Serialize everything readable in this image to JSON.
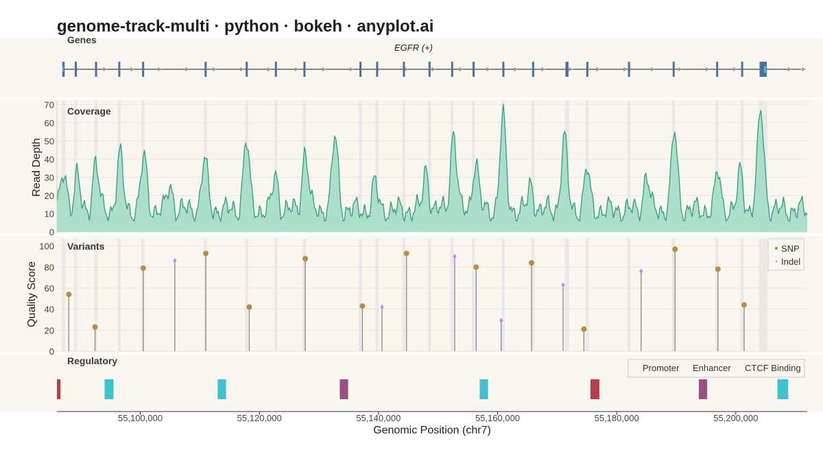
{
  "title": "genome-track-multi · python · bokeh · anyplot.ai",
  "colors": {
    "background": "#f9f6f0",
    "gene_exon": "#4a6fa5",
    "gene_line": "#444444",
    "gene_arrow": "#999999",
    "coverage_fill": "#a8dcc9",
    "coverage_line": "#2e9e7c",
    "snp": "#c08a3e",
    "indel": "#c77dff",
    "stem": "#888888",
    "exon_band": "#e6e6e6",
    "promoter": "#b5404a",
    "enhancer": "#3fc1cf",
    "ctcf": "#9b4f82"
  },
  "chart_data": {
    "type": "genome-track",
    "x_axis": {
      "label": "Genomic Position (chr7)",
      "range": [
        55086000,
        55212000
      ],
      "ticks": [
        55100000,
        55120000,
        55140000,
        55160000,
        55180000,
        55200000
      ],
      "tick_labels": [
        "55,100,000",
        "55,120,000",
        "55,140,000",
        "55,160,000",
        "55,180,000",
        "55,200,000"
      ]
    },
    "genes": {
      "title": "Genes",
      "gene_name": "EGFR (+)",
      "start": 55087000,
      "end": 55211000,
      "exons": [
        [
          55086900,
          55087300
        ],
        [
          55089000,
          55089300
        ],
        [
          55092400,
          55092700
        ],
        [
          55096300,
          55096600
        ],
        [
          55100300,
          55100600
        ],
        [
          55110800,
          55111100
        ],
        [
          55117700,
          55118000
        ],
        [
          55122600,
          55122900
        ],
        [
          55127400,
          55127700
        ],
        [
          55136800,
          55137100
        ],
        [
          55139600,
          55139900
        ],
        [
          55144100,
          55144400
        ],
        [
          55148400,
          55148700
        ],
        [
          55152200,
          55152500
        ],
        [
          55155800,
          55156100
        ],
        [
          55160800,
          55161100
        ],
        [
          55165800,
          55166100
        ],
        [
          55171400,
          55171900
        ],
        [
          55174900,
          55175200
        ],
        [
          55181900,
          55182200
        ],
        [
          55189400,
          55189700
        ],
        [
          55196700,
          55197000
        ],
        [
          55200900,
          55201200
        ],
        [
          55204000,
          55205200
        ]
      ]
    },
    "coverage": {
      "title": "Coverage",
      "ylabel": "Read Depth",
      "ylim": [
        0,
        72
      ],
      "yticks": [
        0,
        10,
        20,
        30,
        40,
        50,
        60,
        70
      ],
      "baseline": 12,
      "peaks": [
        [
          55087200,
          22,
          500
        ],
        [
          55089400,
          18,
          450
        ],
        [
          55092500,
          26,
          500
        ],
        [
          55096600,
          30,
          500
        ],
        [
          55100600,
          29,
          500
        ],
        [
          55105000,
          14,
          450
        ],
        [
          55110800,
          28,
          500
        ],
        [
          55117800,
          38,
          500
        ],
        [
          55122700,
          20,
          450
        ],
        [
          55127700,
          33,
          500
        ],
        [
          55132700,
          40,
          500
        ],
        [
          55139400,
          15,
          450
        ],
        [
          55148000,
          23,
          450
        ],
        [
          55152600,
          44,
          500
        ],
        [
          55156300,
          27,
          500
        ],
        [
          55160900,
          51,
          500
        ],
        [
          55165600,
          14,
          450
        ],
        [
          55171200,
          40,
          500
        ],
        [
          55175000,
          23,
          450
        ],
        [
          55185000,
          20,
          450
        ],
        [
          55189700,
          43,
          500
        ],
        [
          55197000,
          21,
          450
        ],
        [
          55200800,
          21,
          450
        ],
        [
          55204200,
          54,
          550
        ]
      ]
    },
    "variants": {
      "title": "Variants",
      "ylabel": "Quality Score",
      "ylim": [
        0,
        107
      ],
      "yticks": [
        0,
        20,
        40,
        60,
        80,
        100
      ],
      "legend": [
        {
          "label": "SNP",
          "type": "SNP"
        },
        {
          "label": "Indel",
          "type": "Indel"
        }
      ],
      "points": [
        {
          "x": 55088000,
          "y": 54,
          "type": "SNP"
        },
        {
          "x": 55092400,
          "y": 23,
          "type": "SNP"
        },
        {
          "x": 55100500,
          "y": 79,
          "type": "SNP"
        },
        {
          "x": 55105800,
          "y": 86,
          "type": "Indel"
        },
        {
          "x": 55111000,
          "y": 93,
          "type": "SNP"
        },
        {
          "x": 55118300,
          "y": 42,
          "type": "SNP"
        },
        {
          "x": 55127700,
          "y": 88,
          "type": "SNP"
        },
        {
          "x": 55137300,
          "y": 43,
          "type": "SNP"
        },
        {
          "x": 55140600,
          "y": 42,
          "type": "Indel"
        },
        {
          "x": 55144700,
          "y": 93,
          "type": "SNP"
        },
        {
          "x": 55152800,
          "y": 90,
          "type": "Indel"
        },
        {
          "x": 55156400,
          "y": 80,
          "type": "SNP"
        },
        {
          "x": 55160600,
          "y": 29,
          "type": "Indel"
        },
        {
          "x": 55165700,
          "y": 84,
          "type": "SNP"
        },
        {
          "x": 55171000,
          "y": 63,
          "type": "Indel"
        },
        {
          "x": 55174500,
          "y": 21,
          "type": "SNP"
        },
        {
          "x": 55184100,
          "y": 76,
          "type": "Indel"
        },
        {
          "x": 55189800,
          "y": 97,
          "type": "SNP"
        },
        {
          "x": 55197000,
          "y": 78,
          "type": "SNP"
        },
        {
          "x": 55201400,
          "y": 44,
          "type": "SNP"
        }
      ]
    },
    "regulatory": {
      "title": "Regulatory",
      "legend": [
        {
          "label": "Promoter",
          "type": "Promoter"
        },
        {
          "label": "Enhancer",
          "type": "Enhancer"
        },
        {
          "label": "CTCF Binding",
          "type": "CTCF"
        }
      ],
      "elements": [
        {
          "start": 55086000,
          "end": 55086600,
          "type": "Promoter"
        },
        {
          "start": 55094000,
          "end": 55095500,
          "type": "Enhancer"
        },
        {
          "start": 55113000,
          "end": 55114400,
          "type": "Enhancer"
        },
        {
          "start": 55133500,
          "end": 55134900,
          "type": "CTCF"
        },
        {
          "start": 55157000,
          "end": 55158400,
          "type": "Enhancer"
        },
        {
          "start": 55175600,
          "end": 55177100,
          "type": "Promoter"
        },
        {
          "start": 55193800,
          "end": 55195200,
          "type": "CTCF"
        },
        {
          "start": 55207000,
          "end": 55208800,
          "type": "Enhancer"
        }
      ]
    }
  }
}
